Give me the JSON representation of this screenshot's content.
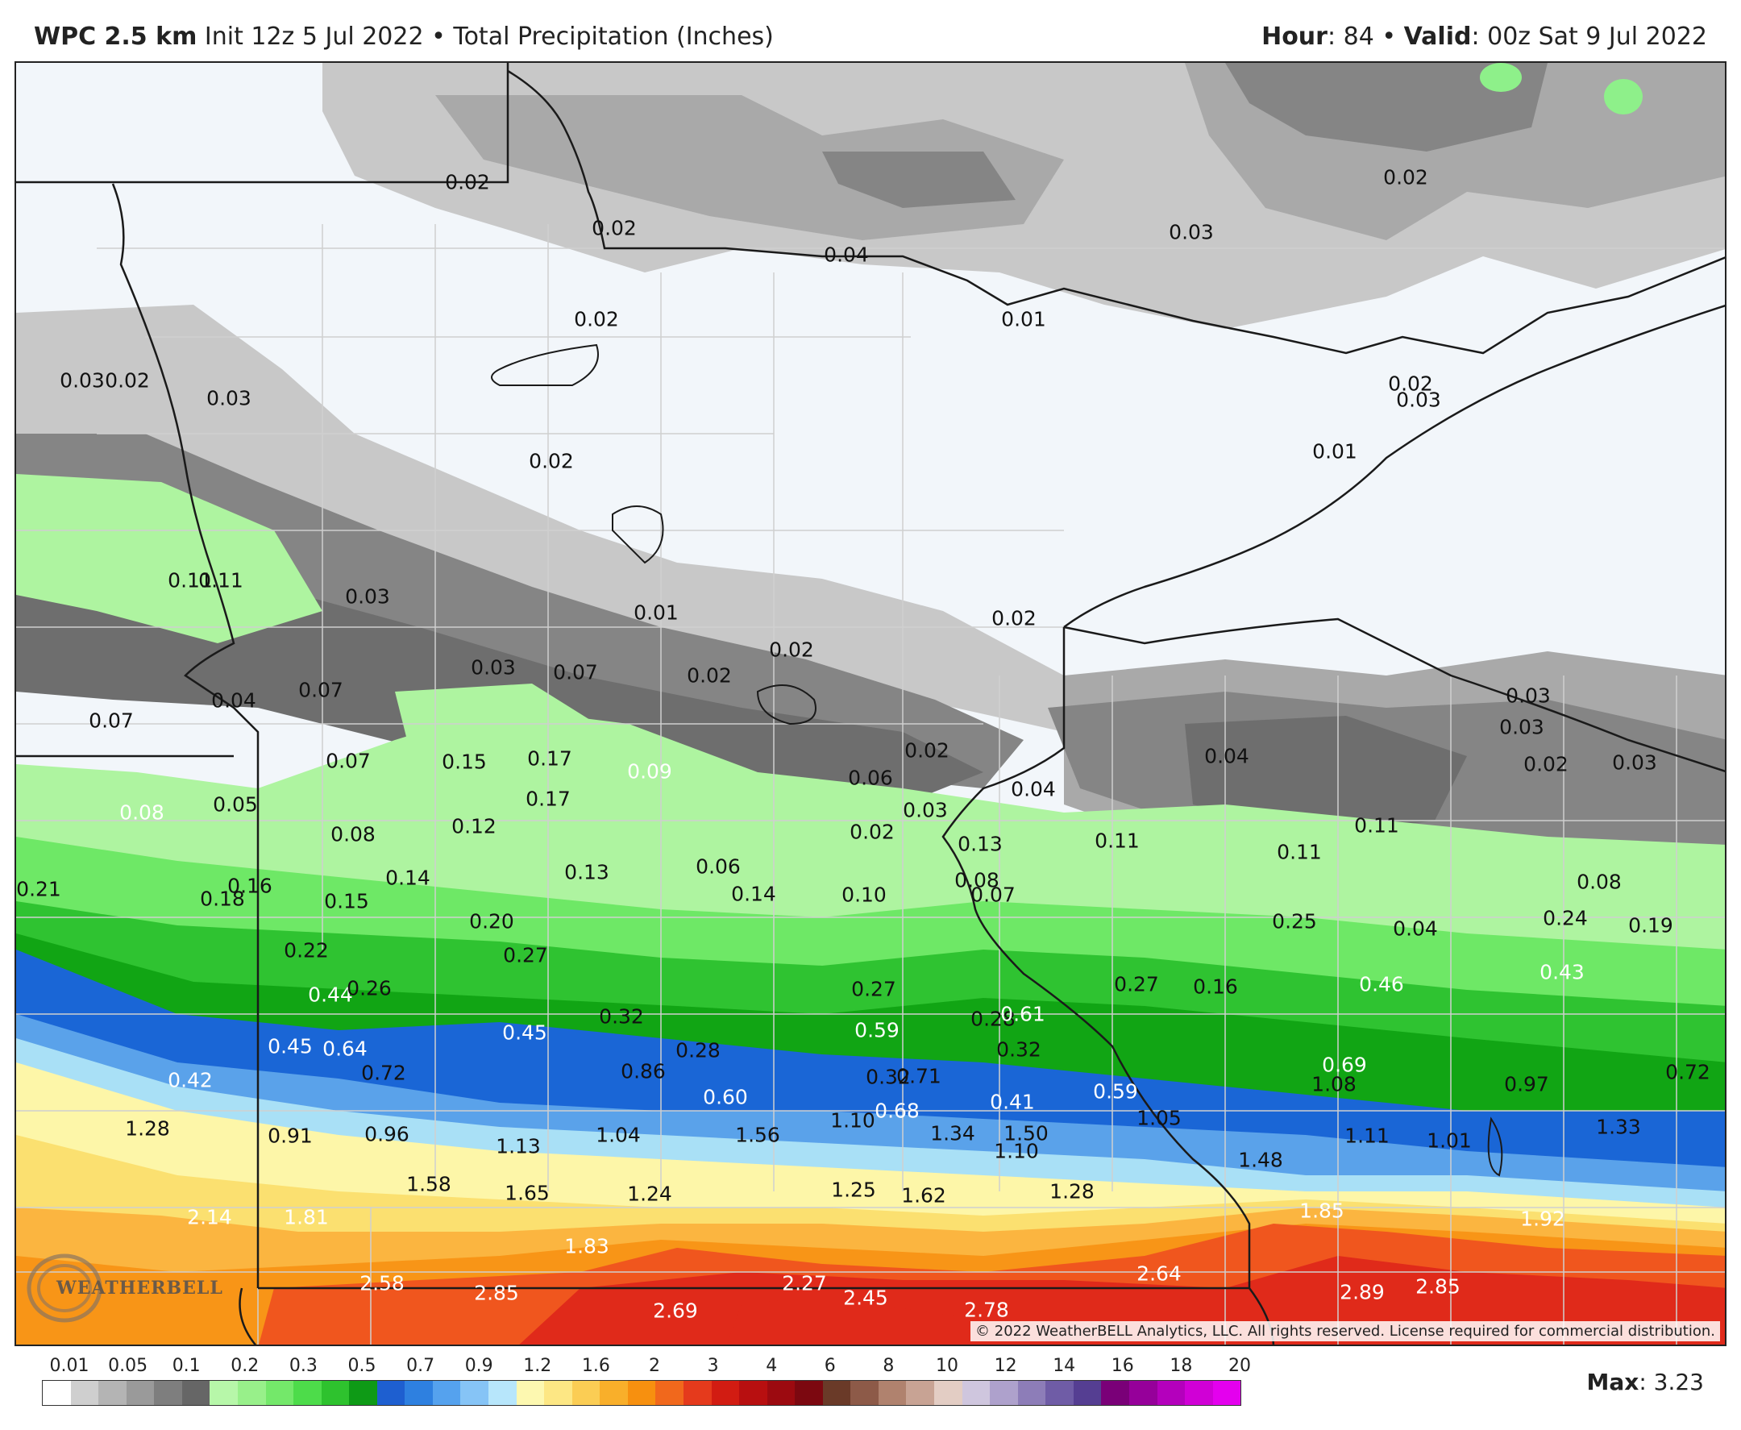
{
  "header": {
    "model": "WPC 2.5 km",
    "init": "Init 12z 5 Jul 2022",
    "separator": "•",
    "field": "Total Precipitation (Inches)",
    "hour_label": "Hour",
    "hour_value": ": 84",
    "valid_label": "Valid",
    "valid_value": ": 00z Sat 9 Jul 2022"
  },
  "map": {
    "copyright": "© 2022 WeatherBELL Analytics, LLC. All rights reserved. License required for commercial distribution.",
    "logo_text": "WEATHERBELL",
    "colors": {
      "none": "#f2f6fa",
      "gray_light": "#c8c8c8",
      "gray_mid": "#a9a9a9",
      "gray_dark": "#858585",
      "gray_darker": "#6e6e6e",
      "green_light": "#aef4a0",
      "green_mid": "#6ee866",
      "green": "#2fc331",
      "green_dark": "#11a514",
      "blue": "#1a66d6",
      "blue_light": "#5aa2ea",
      "cyan_light": "#a9e0f6",
      "yellow_light": "#fdf6a8",
      "yellow": "#fbe070",
      "orange_light": "#fbb540",
      "orange": "#f89517",
      "red_orange": "#f0561e",
      "red": "#e02a1a",
      "green_bright": "#8ef08a"
    },
    "labels": [
      {
        "t": "0.02",
        "c": "dark"
      },
      {
        "t": "0.02",
        "c": "dark"
      },
      {
        "t": "0.04",
        "c": "dark"
      },
      {
        "t": "0.01",
        "c": "dark"
      },
      {
        "t": "0.03",
        "c": "dark"
      },
      {
        "t": "0.02",
        "c": "dark"
      },
      {
        "t": "0.02",
        "c": "dark"
      },
      {
        "t": "0.03",
        "c": "dark"
      },
      {
        "t": "0.02",
        "c": "dark"
      },
      {
        "t": "0.03",
        "c": "dark"
      },
      {
        "t": "0.02",
        "c": "dark"
      },
      {
        "t": "0.03",
        "c": "dark"
      },
      {
        "t": "0.01",
        "c": "dark"
      },
      {
        "t": "0.11",
        "c": "dark"
      },
      {
        "t": "0.11",
        "c": "dark"
      },
      {
        "t": "0.03",
        "c": "dark"
      },
      {
        "t": "0.01",
        "c": "dark"
      },
      {
        "t": "0.02",
        "c": "dark"
      },
      {
        "t": "0.02",
        "c": "dark"
      },
      {
        "t": "0.02",
        "c": "dark"
      },
      {
        "t": "0.02",
        "c": "dark"
      },
      {
        "t": "0.03",
        "c": "dark"
      },
      {
        "t": "0.07",
        "c": "dark"
      },
      {
        "t": "0.04",
        "c": "dark"
      },
      {
        "t": "0.07",
        "c": "dark"
      },
      {
        "t": "0.07",
        "c": "dark"
      },
      {
        "t": "0.07",
        "c": "dark"
      },
      {
        "t": "0.15",
        "c": "dark"
      },
      {
        "t": "0.17",
        "c": "dark"
      },
      {
        "t": "0.09",
        "c": "light"
      },
      {
        "t": "0.06",
        "c": "dark"
      },
      {
        "t": "0.02",
        "c": "dark"
      },
      {
        "t": "0.04",
        "c": "dark"
      },
      {
        "t": "0.04",
        "c": "dark"
      },
      {
        "t": "0.03",
        "c": "dark"
      },
      {
        "t": "0.02",
        "c": "dark"
      },
      {
        "t": "0.03",
        "c": "dark"
      },
      {
        "t": "0.03",
        "c": "dark"
      },
      {
        "t": "0.08",
        "c": "light"
      },
      {
        "t": "0.05",
        "c": "dark"
      },
      {
        "t": "0.12",
        "c": "dark"
      },
      {
        "t": "0.17",
        "c": "dark"
      },
      {
        "t": "0.08",
        "c": "dark"
      },
      {
        "t": "0.03",
        "c": "dark"
      },
      {
        "t": "0.06",
        "c": "dark"
      },
      {
        "t": "0.02",
        "c": "dark"
      },
      {
        "t": "0.13",
        "c": "dark"
      },
      {
        "t": "0.11",
        "c": "dark"
      },
      {
        "t": "0.11",
        "c": "dark"
      },
      {
        "t": "0.11",
        "c": "dark"
      },
      {
        "t": "0.08",
        "c": "dark"
      },
      {
        "t": "0.04",
        "c": "dark"
      },
      {
        "t": "0.21",
        "c": "dark"
      },
      {
        "t": "0.18",
        "c": "dark"
      },
      {
        "t": "0.16",
        "c": "dark"
      },
      {
        "t": "0.15",
        "c": "dark"
      },
      {
        "t": "0.14",
        "c": "dark"
      },
      {
        "t": "0.13",
        "c": "dark"
      },
      {
        "t": "0.14",
        "c": "dark"
      },
      {
        "t": "0.10",
        "c": "dark"
      },
      {
        "t": "0.08",
        "c": "dark"
      },
      {
        "t": "0.07",
        "c": "dark"
      },
      {
        "t": "0.25",
        "c": "dark"
      },
      {
        "t": "0.24",
        "c": "dark"
      },
      {
        "t": "0.19",
        "c": "dark"
      },
      {
        "t": "0.20",
        "c": "dark"
      },
      {
        "t": "0.22",
        "c": "dark"
      },
      {
        "t": "0.44",
        "c": "light"
      },
      {
        "t": "0.26",
        "c": "dark"
      },
      {
        "t": "0.27",
        "c": "dark"
      },
      {
        "t": "0.27",
        "c": "dark"
      },
      {
        "t": "0.28",
        "c": "dark"
      },
      {
        "t": "0.27",
        "c": "dark"
      },
      {
        "t": "0.16",
        "c": "dark"
      },
      {
        "t": "0.46",
        "c": "light"
      },
      {
        "t": "0.43",
        "c": "light"
      },
      {
        "t": "0.45",
        "c": "light"
      },
      {
        "t": "0.45",
        "c": "light"
      },
      {
        "t": "0.64",
        "c": "light"
      },
      {
        "t": "0.32",
        "c": "dark"
      },
      {
        "t": "0.28",
        "c": "dark"
      },
      {
        "t": "0.32",
        "c": "dark"
      },
      {
        "t": "0.59",
        "c": "light"
      },
      {
        "t": "0.61",
        "c": "light"
      },
      {
        "t": "0.41",
        "c": "light"
      },
      {
        "t": "0.32",
        "c": "dark"
      },
      {
        "t": "0.60",
        "c": "light"
      },
      {
        "t": "0.69",
        "c": "light"
      },
      {
        "t": "0.97",
        "c": "dark"
      },
      {
        "t": "0.72",
        "c": "dark"
      },
      {
        "t": "0.72",
        "c": "dark"
      },
      {
        "t": "0.71",
        "c": "dark"
      },
      {
        "t": "0.59",
        "c": "light"
      },
      {
        "t": "0.42",
        "c": "light"
      },
      {
        "t": "0.86",
        "c": "dark"
      },
      {
        "t": "1.08",
        "c": "dark"
      },
      {
        "t": "1.10",
        "c": "dark"
      },
      {
        "t": "1.56",
        "c": "dark"
      },
      {
        "t": "0.68",
        "c": "light"
      },
      {
        "t": "1.05",
        "c": "dark"
      },
      {
        "t": "1.33",
        "c": "dark"
      },
      {
        "t": "1.28",
        "c": "dark"
      },
      {
        "t": "0.91",
        "c": "dark"
      },
      {
        "t": "0.96",
        "c": "dark"
      },
      {
        "t": "1.04",
        "c": "dark"
      },
      {
        "t": "1.34",
        "c": "dark"
      },
      {
        "t": "1.50",
        "c": "dark"
      },
      {
        "t": "1.11",
        "c": "dark"
      },
      {
        "t": "1.01",
        "c": "dark"
      },
      {
        "t": "1.13",
        "c": "dark"
      },
      {
        "t": "1.10",
        "c": "dark"
      },
      {
        "t": "1.48",
        "c": "dark"
      },
      {
        "t": "1.58",
        "c": "dark"
      },
      {
        "t": "1.65",
        "c": "dark"
      },
      {
        "t": "1.24",
        "c": "dark"
      },
      {
        "t": "1.25",
        "c": "dark"
      },
      {
        "t": "1.62",
        "c": "dark"
      },
      {
        "t": "1.28",
        "c": "dark"
      },
      {
        "t": "2.14",
        "c": "light"
      },
      {
        "t": "1.81",
        "c": "light"
      },
      {
        "t": "1.85",
        "c": "light"
      },
      {
        "t": "1.92",
        "c": "light"
      },
      {
        "t": "1.83",
        "c": "light"
      },
      {
        "t": "2.58",
        "c": "light"
      },
      {
        "t": "2.85",
        "c": "light"
      },
      {
        "t": "2.27",
        "c": "light"
      },
      {
        "t": "2.45",
        "c": "light"
      },
      {
        "t": "2.64",
        "c": "light"
      },
      {
        "t": "2.69",
        "c": "light"
      },
      {
        "t": "2.78",
        "c": "light"
      },
      {
        "t": "2.89",
        "c": "light"
      },
      {
        "t": "2.85",
        "c": "light"
      }
    ]
  },
  "legend": {
    "ticks": [
      "0.01",
      "0.05",
      "0.1",
      "0.2",
      "0.3",
      "0.5",
      "0.7",
      "0.9",
      "1.2",
      "1.6",
      "2",
      "3",
      "4",
      "6",
      "8",
      "10",
      "12",
      "14",
      "16",
      "18",
      "20"
    ],
    "colors": [
      "#ffffff",
      "#cfcfcf",
      "#b4b4b4",
      "#9a9a9a",
      "#7e7e7e",
      "#666666",
      "#b7f7a9",
      "#98f08a",
      "#74e86a",
      "#4ddc4a",
      "#2ec22e",
      "#0e9a16",
      "#1e5fd0",
      "#2e80e0",
      "#55a2ee",
      "#86c4f6",
      "#b7e6fb",
      "#fdf8b0",
      "#fde784",
      "#fbcd54",
      "#f9af2a",
      "#f7900f",
      "#f1681c",
      "#e53a1c",
      "#d21c12",
      "#b80f10",
      "#9c0a10",
      "#7c0810",
      "#6a3a28",
      "#8d5a48",
      "#b0826e",
      "#c8a394",
      "#e3cdc4",
      "#cfc6de",
      "#aea1cc",
      "#8d7db8",
      "#6f5ca6",
      "#553e92",
      "#7a0078",
      "#96009a",
      "#b400bc",
      "#d000d6",
      "#e400ee"
    ]
  },
  "max": {
    "label": "Max",
    "value": ": 3.23"
  }
}
